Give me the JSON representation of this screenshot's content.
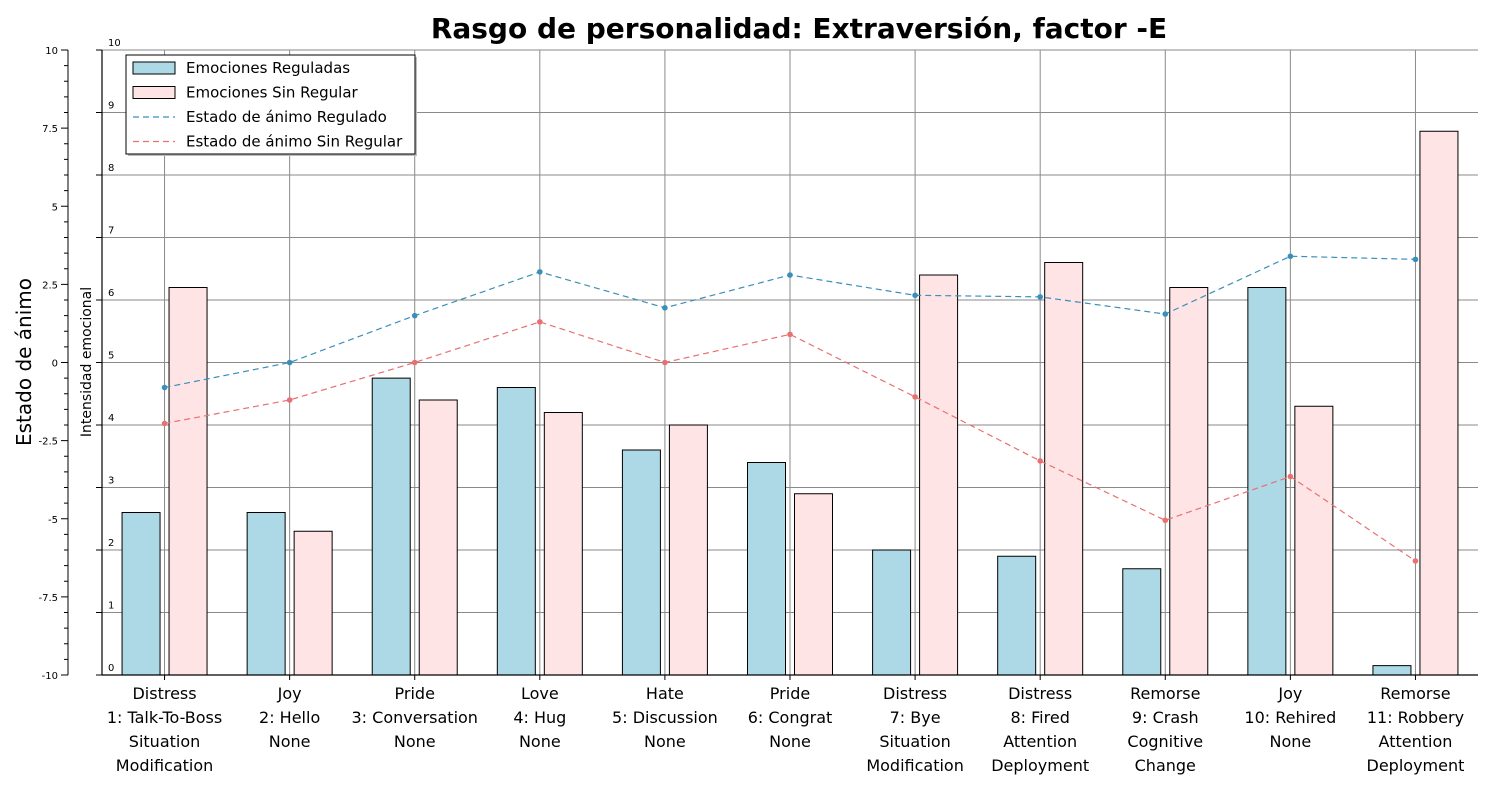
{
  "chart_data": {
    "type": "bar",
    "title": "Rasgo de personalidad: Extraversión, factor -E",
    "ylabel": "Estado de ánimo",
    "y2label": "Intensidad emocional",
    "ylim": [
      -10,
      10
    ],
    "y2lim": [
      0,
      10
    ],
    "yticks": [
      "10",
      "7.5",
      "5",
      "2.5",
      "0",
      "-2.5",
      "-5",
      "-7.5",
      "-10"
    ],
    "y2ticks": [
      "10",
      "9",
      "8",
      "7",
      "6",
      "5",
      "4",
      "3",
      "2",
      "1",
      "0"
    ],
    "grid": true,
    "legend_position": "top-left",
    "categories": [
      [
        "Distress",
        "1: Talk-To-Boss",
        "Situation",
        "Modification"
      ],
      [
        "Joy",
        "2: Hello",
        "None"
      ],
      [
        "Pride",
        "3: Conversation",
        "None"
      ],
      [
        "Love",
        "4: Hug",
        "None"
      ],
      [
        "Hate",
        "5: Discussion",
        "None"
      ],
      [
        "Pride",
        "6: Congrat",
        "None"
      ],
      [
        "Distress",
        "7: Bye",
        "Situation",
        "Modification"
      ],
      [
        "Distress",
        "8: Fired",
        "Attention",
        "Deployment"
      ],
      [
        "Remorse",
        "9: Crash",
        "Cognitive",
        "Change"
      ],
      [
        "Joy",
        "10: Rehired",
        "None"
      ],
      [
        "Remorse",
        "11: Robbery",
        "Attention",
        "Deployment"
      ]
    ],
    "series": [
      {
        "name": "Emociones Reguladas",
        "kind": "bar",
        "axis": "right",
        "color": "#add8e6",
        "values": [
          2.6,
          2.6,
          4.75,
          4.6,
          3.6,
          3.4,
          2.0,
          1.9,
          1.7,
          6.2,
          0.15
        ]
      },
      {
        "name": "Emociones Sin Regular",
        "kind": "bar",
        "axis": "right",
        "color": "#ffe4e6",
        "values": [
          6.2,
          2.3,
          4.4,
          4.2,
          4.0,
          2.9,
          6.4,
          6.6,
          6.2,
          4.3,
          8.7
        ]
      },
      {
        "name": "Estado de ánimo Regulado",
        "kind": "line",
        "axis": "left",
        "color": "#3a8fba",
        "values": [
          -0.8,
          0.0,
          1.5,
          2.9,
          1.75,
          2.8,
          2.15,
          2.1,
          1.55,
          3.4,
          3.3
        ]
      },
      {
        "name": "Estado de ánimo Sin Regular",
        "kind": "line",
        "axis": "left",
        "color": "#e97070",
        "values": [
          -1.95,
          -1.2,
          0.0,
          1.3,
          0.0,
          0.9,
          -1.1,
          -3.15,
          -5.05,
          -3.65,
          -6.35
        ]
      }
    ]
  }
}
